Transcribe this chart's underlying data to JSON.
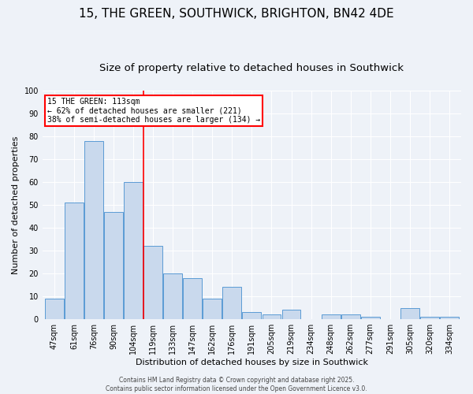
{
  "title1": "15, THE GREEN, SOUTHWICK, BRIGHTON, BN42 4DE",
  "title2": "Size of property relative to detached houses in Southwick",
  "xlabel": "Distribution of detached houses by size in Southwick",
  "ylabel": "Number of detached properties",
  "categories": [
    "47sqm",
    "61sqm",
    "76sqm",
    "90sqm",
    "104sqm",
    "119sqm",
    "133sqm",
    "147sqm",
    "162sqm",
    "176sqm",
    "191sqm",
    "205sqm",
    "219sqm",
    "234sqm",
    "248sqm",
    "262sqm",
    "277sqm",
    "291sqm",
    "305sqm",
    "320sqm",
    "334sqm"
  ],
  "values": [
    9,
    51,
    78,
    47,
    60,
    32,
    20,
    18,
    9,
    14,
    3,
    2,
    4,
    0,
    2,
    2,
    1,
    0,
    5,
    1,
    1
  ],
  "bar_color": "#c9d9ed",
  "bar_edge_color": "#5b9bd5",
  "vline_x": 5,
  "vline_color": "red",
  "annotation_text": "15 THE GREEN: 113sqm\n← 62% of detached houses are smaller (221)\n38% of semi-detached houses are larger (134) →",
  "annotation_box_color": "white",
  "annotation_box_edge_color": "red",
  "ylim": [
    0,
    100
  ],
  "yticks": [
    0,
    10,
    20,
    30,
    40,
    50,
    60,
    70,
    80,
    90,
    100
  ],
  "footer_text": "Contains HM Land Registry data © Crown copyright and database right 2025.\nContains public sector information licensed under the Open Government Licence v3.0.",
  "background_color": "#eef2f8",
  "title_fontsize": 11,
  "subtitle_fontsize": 9.5,
  "tick_fontsize": 7,
  "axis_label_fontsize": 8,
  "footer_fontsize": 5.5
}
